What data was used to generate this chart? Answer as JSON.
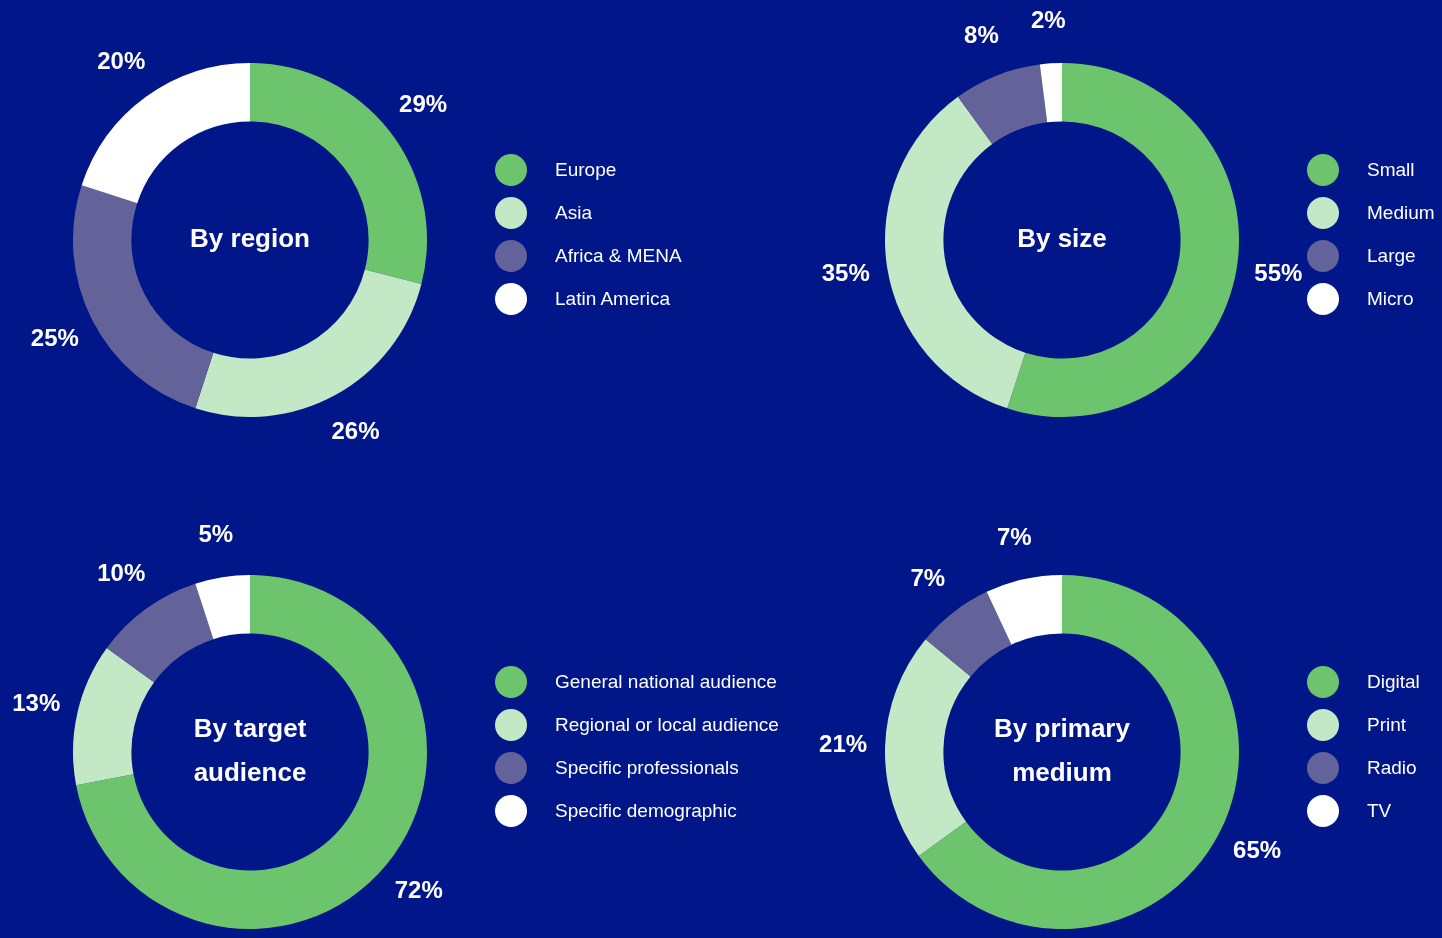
{
  "chart_data": [
    {
      "type": "donut",
      "title": "By region",
      "categories": [
        "Europe",
        "Asia",
        "Africa & MENA",
        "Latin America"
      ],
      "values": [
        29,
        26,
        25,
        20
      ],
      "value_labels": [
        "29%",
        "26%",
        "25%",
        "20%"
      ],
      "colors": [
        "#6cc56c",
        "#c3e8c5",
        "#636399",
        "#ffffff"
      ],
      "legend": "right"
    },
    {
      "type": "donut",
      "title": "By size",
      "categories": [
        "Small",
        "Medium",
        "Large",
        "Micro"
      ],
      "values": [
        55,
        35,
        8,
        2
      ],
      "value_labels": [
        "55%",
        "35%",
        "8%",
        "2%"
      ],
      "colors": [
        "#6cc56c",
        "#c3e8c5",
        "#636399",
        "#ffffff"
      ],
      "legend": "right"
    },
    {
      "type": "donut",
      "title": "By target audience",
      "categories": [
        "General national audience",
        "Regional or local audience",
        "Specific professionals",
        "Specific demographic"
      ],
      "values": [
        72,
        13,
        10,
        5
      ],
      "value_labels": [
        "72%",
        "13%",
        "10%",
        "5%"
      ],
      "colors": [
        "#6cc56c",
        "#c3e8c5",
        "#636399",
        "#ffffff"
      ],
      "legend": "right"
    },
    {
      "type": "donut",
      "title": "By primary medium",
      "categories": [
        "Digital",
        "Print",
        "Radio",
        "TV"
      ],
      "values": [
        65,
        21,
        7,
        7
      ],
      "value_labels": [
        "65%",
        "21%",
        "7%",
        "7%"
      ],
      "colors": [
        "#6cc56c",
        "#c3e8c5",
        "#636399",
        "#ffffff"
      ],
      "legend": "right"
    }
  ]
}
